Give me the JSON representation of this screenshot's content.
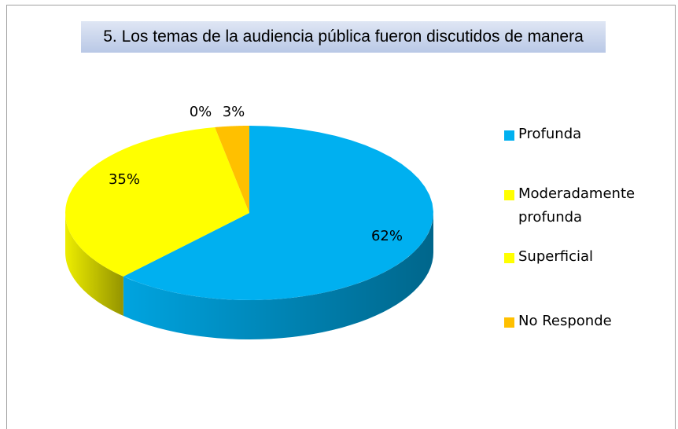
{
  "chart_data": {
    "type": "pie",
    "title": "5. Los temas de la audiencia pública fueron discutidos de manera",
    "categories": [
      "Profunda",
      "Moderadamente profunda",
      "Superficial",
      "No Responde"
    ],
    "values": [
      62,
      35,
      0,
      3
    ],
    "value_labels": [
      "62%",
      "35%",
      "0%",
      "3%"
    ],
    "colors": [
      "#00b0f0",
      "#ffff00",
      "#ffff00",
      "#ffc000"
    ],
    "legend": "right"
  }
}
